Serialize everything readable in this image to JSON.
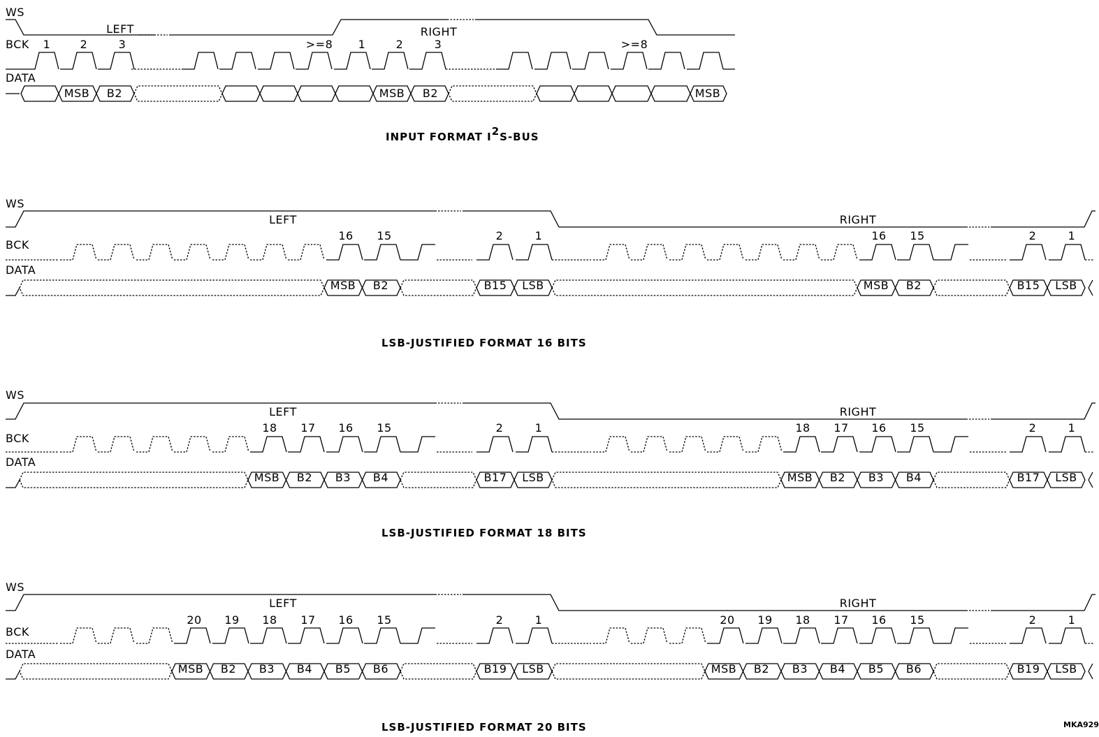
{
  "signals": {
    "ws": "WS",
    "bck": "BCK",
    "data": "DATA"
  },
  "channels": {
    "left": "LEFT",
    "right": "RIGHT"
  },
  "diagrams": [
    {
      "caption_main": "INPUT FORMAT I",
      "caption_sup": "2",
      "caption_tail": "S-BUS",
      "left_clock_labels": [
        "1",
        "2",
        "3",
        ">=8"
      ],
      "right_clock_labels": [
        "1",
        "2",
        "3",
        ">=8"
      ],
      "left_data_cells": [
        "MSB",
        "B2"
      ],
      "right_data_cells": [
        "MSB",
        "B2"
      ],
      "end_cell": "MSB"
    },
    {
      "caption": "LSB-JUSTIFIED FORMAT 16 BITS",
      "numbers": [
        "16",
        "15",
        "2",
        "1"
      ],
      "data_cells": [
        "MSB",
        "B2",
        "B15",
        "LSB"
      ]
    },
    {
      "caption": "LSB-JUSTIFIED FORMAT 18 BITS",
      "numbers": [
        "18",
        "17",
        "16",
        "15",
        "2",
        "1"
      ],
      "data_cells": [
        "MSB",
        "B2",
        "B3",
        "B4",
        "B17",
        "LSB"
      ]
    },
    {
      "caption": "LSB-JUSTIFIED FORMAT 20 BITS",
      "numbers": [
        "20",
        "19",
        "18",
        "17",
        "16",
        "15",
        "2",
        "1"
      ],
      "data_cells": [
        "MSB",
        "B2",
        "B3",
        "B4",
        "B5",
        "B6",
        "B19",
        "LSB"
      ]
    }
  ],
  "figure_id": "MKA929"
}
